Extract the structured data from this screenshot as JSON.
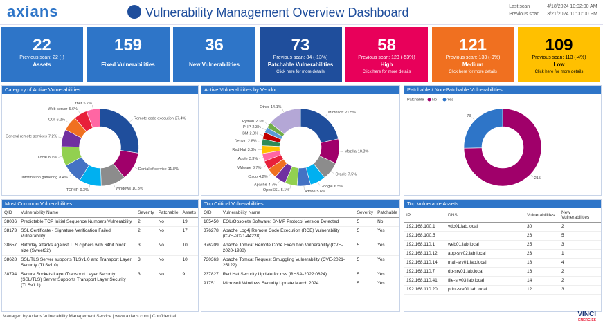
{
  "header": {
    "logo": "axians",
    "title": "Vulnerability Management Overview Dashboard",
    "scan_info": [
      {
        "label": "Last scan",
        "value": "4/18/2024 10:02:00 AM"
      },
      {
        "label": "Previous scan",
        "value": "3/21/2024 10:00:00 PM"
      }
    ]
  },
  "cards": [
    {
      "value": "22",
      "previous": "Previous scan: 22 (-)",
      "label": "Assets",
      "color": "#2e75c8"
    },
    {
      "value": "159",
      "label": "Fixed Vulnerabilities",
      "color": "#2e75c8"
    },
    {
      "value": "36",
      "label": "New Vulnerabilities",
      "color": "#2e75c8"
    },
    {
      "value": "73",
      "previous": "Previous scan: 84 (-13%)",
      "label": "Patchable Vulnerabilities",
      "link": "Click here for more details",
      "color": "#1f4e9c"
    },
    {
      "value": "58",
      "previous": "Previous scan: 123 (-53%)",
      "label": "High",
      "link": "Click here for more details",
      "color": "#e8005a"
    },
    {
      "value": "121",
      "previous": "Previous scan: 133 (-9%)",
      "label": "Medium",
      "link": "Click here for more details",
      "color": "#f07020"
    },
    {
      "value": "109",
      "previous": "Previous scan: 113 (-4%)",
      "label": "Low",
      "link": "Click here for more details",
      "color": "#ffc000",
      "text_color": "#000000"
    }
  ],
  "chart_data": [
    {
      "type": "pie",
      "title": "Category of Active Vulnerabilities",
      "categories": [
        "Remote code execution",
        "Denial of service",
        "Windows",
        "TCP/IP",
        "Information gathering",
        "Local",
        "General remote services",
        "CGI",
        "Web server",
        "Other"
      ],
      "values": [
        27.4,
        11.8,
        10.3,
        9.3,
        8.4,
        8.1,
        7.2,
        6.2,
        5.6,
        5.7
      ],
      "value_labels": [
        "27.4%",
        "11.8%",
        "10.3%",
        "9.3%",
        "8.4%",
        "8.1%",
        "7.2%",
        "6.2%",
        "5.6%",
        "5.7%"
      ],
      "colors": [
        "#1f4e9c",
        "#a0006a",
        "#8c8c8c",
        "#00b0f0",
        "#4472c4",
        "#92d050",
        "#7030a0",
        "#f07020",
        "#e8203a",
        "#ff66a3"
      ]
    },
    {
      "type": "pie",
      "title": "Active Vulnerabilities by Vendor",
      "categories": [
        "Microsoft",
        "Mozilla",
        "Oracle",
        "Google",
        "Adobe",
        "OpenSSL",
        "Apache",
        "Cisco",
        "VMware",
        "Apple",
        "Red Hat",
        "Debian",
        "IBM",
        "PHP",
        "Python",
        "Other"
      ],
      "values": [
        21.5,
        10.3,
        7.5,
        6.5,
        5.6,
        5.1,
        4.7,
        4.2,
        3.7,
        3.3,
        3.3,
        2.8,
        2.8,
        2.3,
        2.3,
        14.1
      ],
      "value_labels": [
        "21.5%",
        "10.3%",
        "7.5%",
        "6.5%",
        "5.6%",
        "5.1%",
        "4.7%",
        "4.2%",
        "3.7%",
        "3.3%",
        "3.3%",
        "2.8%",
        "2.8%",
        "2.3%",
        "2.3%",
        "14.1%"
      ],
      "colors": [
        "#1f4e9c",
        "#a0006a",
        "#8c8c8c",
        "#00b0f0",
        "#4472c4",
        "#92d050",
        "#7030a0",
        "#f07020",
        "#e8203a",
        "#ff66a3",
        "#ffc000",
        "#2e8b57",
        "#c00000",
        "#5b9bd5",
        "#70ad47",
        "#b4a7d6"
      ]
    },
    {
      "type": "pie",
      "title": "Patchable / Non-Patchable Vulnerabilities",
      "legend_title": "Patchable",
      "categories": [
        "No",
        "Yes"
      ],
      "values": [
        215,
        73
      ],
      "colors": [
        "#a0006a",
        "#2e75c8"
      ],
      "labels_only_values": true
    }
  ],
  "tables": [
    {
      "title": "Most Common Vulnerabilities",
      "columns": [
        "QID",
        "Vulnerability Name",
        "Severity",
        "Patchable",
        "Assets"
      ],
      "rows": [
        [
          "38086",
          "Predictable TCP Initial Sequence Numbers Vulnerability",
          "2",
          "No",
          "19"
        ],
        [
          "38173",
          "SSL Certificate - Signature Verification Failed Vulnerability",
          "2",
          "No",
          "17"
        ],
        [
          "38657",
          "Birthday attacks against TLS ciphers with 64bit block size (Sweet32)",
          "3",
          "No",
          "10"
        ],
        [
          "38628",
          "SSL/TLS Server supports TLSv1.0 and Transport Layer Security (TLSv1.0)",
          "3",
          "No",
          "10"
        ],
        [
          "38794",
          "Secure Sockets Layer/Transport Layer Security (SSL/TLS) Server Supports Transport Layer Security (TLSv1.1)",
          "3",
          "No",
          "9"
        ]
      ]
    },
    {
      "title": "Top Critical Vulnerabilities",
      "columns": [
        "QID",
        "Vulnerability Name",
        "Severity",
        "Patchable"
      ],
      "rows": [
        [
          "105450",
          "EOL/Obsolete Software: SNMP Protocol Version Detected",
          "5",
          "No"
        ],
        [
          "376278",
          "Apache Log4j Remote Code Execution (RCE) Vulnerability (CVE-2021-44228)",
          "5",
          "Yes"
        ],
        [
          "376209",
          "Apache Tomcat Remote Code Execution Vulnerability (CVE-2020-1938)",
          "5",
          "Yes"
        ],
        [
          "730363",
          "Apache Tomcat Request Smuggling Vulnerability (CVE-2021-25122)",
          "5",
          "Yes"
        ],
        [
          "237827",
          "Red Hat Security Update for nss (RHSA-2022:0824)",
          "5",
          "Yes"
        ],
        [
          "91751",
          "Microsoft Windows Security Update March 2024",
          "5",
          "Yes"
        ]
      ]
    },
    {
      "title": "Top Vulnerable Assets",
      "columns": [
        "IP",
        "DNS",
        "Vulnerabilities",
        "New Vulnerabilities"
      ],
      "rows": [
        [
          "192.168.100.1",
          "vdc01.lab.local",
          "30",
          "2"
        ],
        [
          "192.168.100.5",
          "",
          "26",
          "5"
        ],
        [
          "192.168.110.1",
          "web01.lab.local",
          "25",
          "3"
        ],
        [
          "192.168.110.12",
          "app-srv02.lab.local",
          "23",
          "1"
        ],
        [
          "192.168.110.14",
          "mail-srv01.lab.local",
          "18",
          "4"
        ],
        [
          "192.168.110.7",
          "db-srv01.lab.local",
          "16",
          "2"
        ],
        [
          "192.168.110.41",
          "file-srv03.lab.local",
          "14",
          "2"
        ],
        [
          "192.168.110.20",
          "print-srv01.lab.local",
          "12",
          "3"
        ]
      ]
    }
  ],
  "footer": {
    "text": "Managed by Axians Vulnerability Management Service | www.axians.com | Confidential",
    "logo": "VINCI",
    "logo_sub": "ENERGIES"
  }
}
